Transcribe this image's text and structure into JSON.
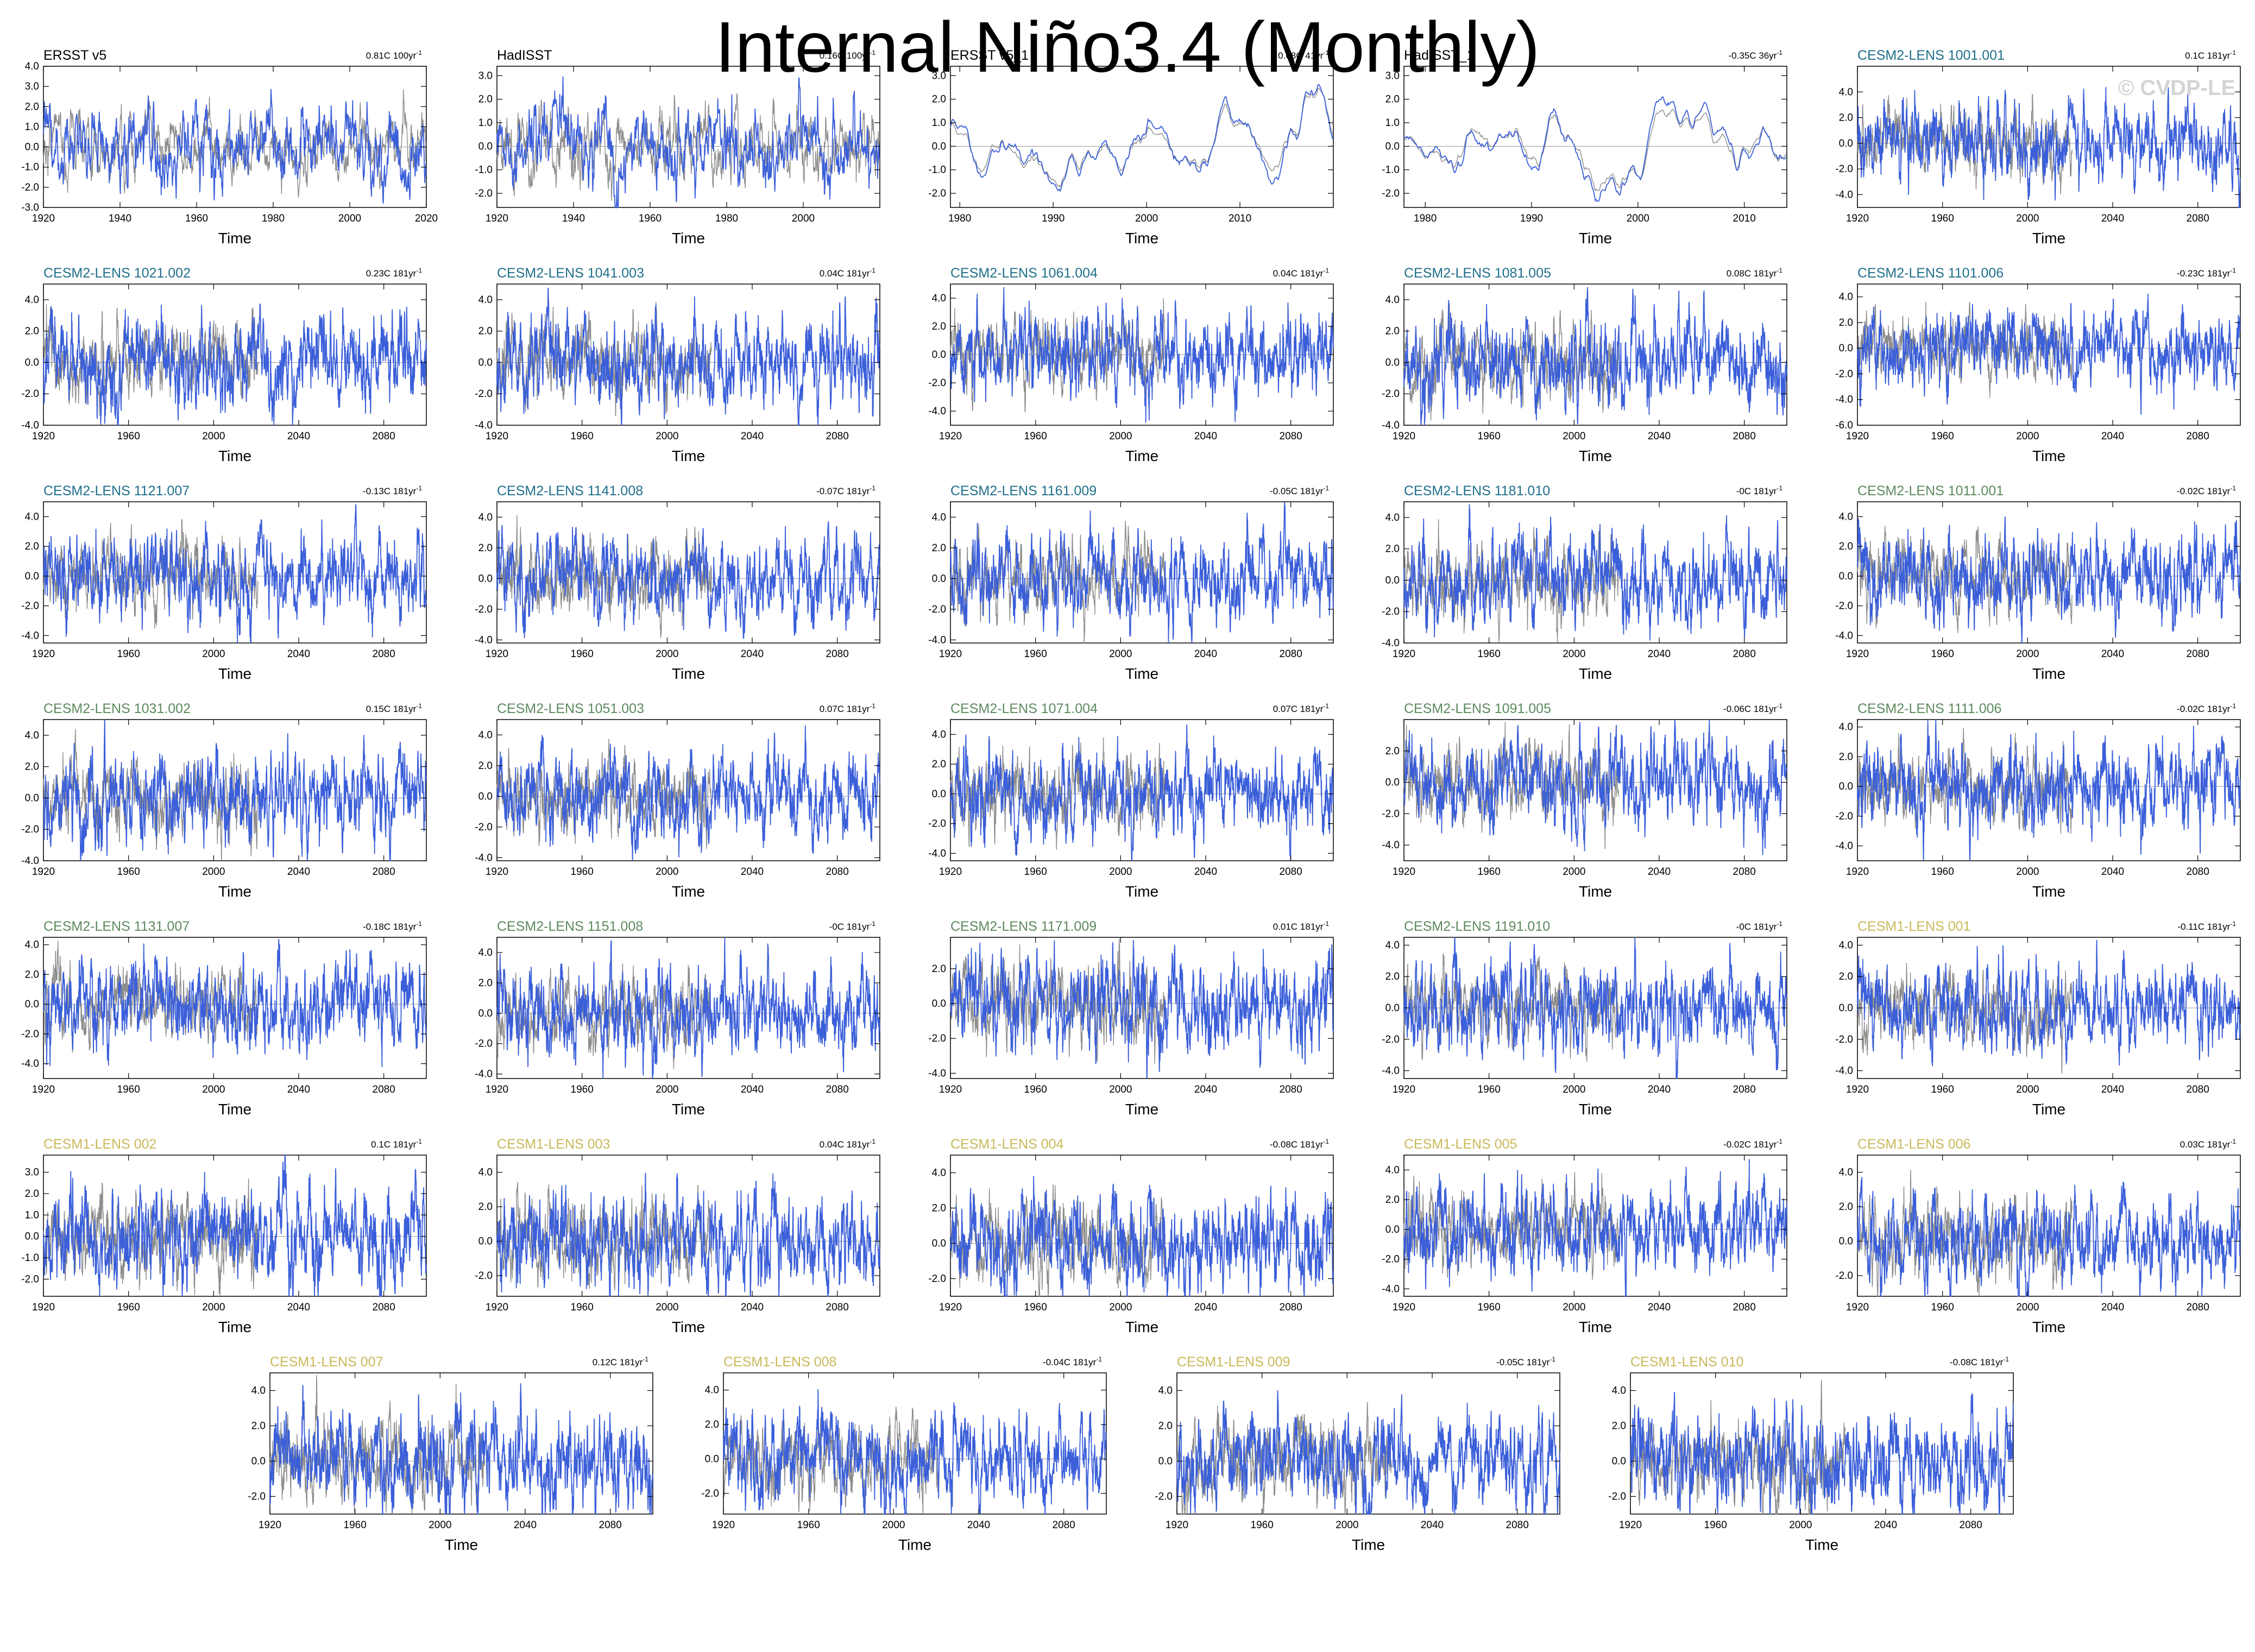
{
  "title": "Internal Niño3.4 (Monthly)",
  "watermark": "© CVDP-LE",
  "colors": {
    "observations_title": "#000000",
    "cesm2_cmip6_title": "#1f6f8b",
    "cesm2_smbb_title": "#5d8a5e",
    "cesm1_title": "#c9b95a",
    "primary_series": "#3b5fd9",
    "secondary_series": "#8c8c8c"
  },
  "chart_data": [
    {
      "type": "line",
      "title": "ERSST v5",
      "stat": "0.81C 100yr",
      "title_color": "#000000",
      "xlabel": "Time",
      "xlim": [
        1920,
        2020
      ],
      "xticks": [
        1920,
        1940,
        1960,
        1980,
        2000,
        2020
      ],
      "ylim": [
        -3.0,
        4.0
      ],
      "yticks": [
        -3.0,
        -2.0,
        -1.0,
        0.0,
        1.0,
        2.0,
        3.0,
        4.0
      ],
      "amplitude": 1.0,
      "smooth": false,
      "seed": 1
    },
    {
      "type": "line",
      "title": "HadISST",
      "stat": "0.16C 100yr",
      "title_color": "#000000",
      "xlabel": "Time",
      "xlim": [
        1920,
        2020
      ],
      "xticks": [
        1920,
        1940,
        1960,
        1980,
        2000
      ],
      "ylim": [
        -2.6,
        3.4
      ],
      "yticks": [
        -2.0,
        -1.0,
        0.0,
        1.0,
        2.0,
        3.0
      ],
      "amplitude": 0.9,
      "smooth": false,
      "seed": 2
    },
    {
      "type": "line",
      "title": "ERSST v5_1",
      "stat": "0.08C 41yr",
      "title_color": "#000000",
      "xlabel": "Time",
      "xlim": [
        1979,
        2020
      ],
      "xticks": [
        1980,
        1990,
        2000,
        2010
      ],
      "ylim": [
        -2.6,
        3.4
      ],
      "yticks": [
        -2.0,
        -1.0,
        0.0,
        1.0,
        2.0,
        3.0
      ],
      "amplitude": 1.0,
      "smooth": true,
      "seed": 3
    },
    {
      "type": "line",
      "title": "HadISST_1",
      "stat": "-0.35C 36yr",
      "title_color": "#000000",
      "xlabel": "Time",
      "xlim": [
        1978,
        2014
      ],
      "xticks": [
        1980,
        1990,
        2000,
        2010
      ],
      "ylim": [
        -2.6,
        3.4
      ],
      "yticks": [
        -2.0,
        -1.0,
        0.0,
        1.0,
        2.0,
        3.0
      ],
      "amplitude": 1.0,
      "smooth": true,
      "seed": 4
    },
    {
      "type": "line",
      "title": "CESM2-LENS 1001.001",
      "stat": "0.1C 181yr",
      "title_color": "#1f6f8b",
      "xlabel": "Time",
      "xlim": [
        1920,
        2100
      ],
      "xticks": [
        1920,
        1960,
        2000,
        2040,
        2080
      ],
      "ylim": [
        -5.0,
        6.0
      ],
      "yticks": [
        -4.0,
        -2.0,
        0.0,
        2.0,
        4.0
      ],
      "amplitude": 1.5,
      "smooth": false,
      "seed": 5
    },
    {
      "type": "line",
      "title": "CESM2-LENS 1021.002",
      "stat": "0.23C 181yr",
      "title_color": "#1f6f8b",
      "xlabel": "Time",
      "xlim": [
        1920,
        2100
      ],
      "xticks": [
        1920,
        1960,
        2000,
        2040,
        2080
      ],
      "ylim": [
        -4.0,
        5.0
      ],
      "yticks": [
        -4.0,
        -2.0,
        0.0,
        2.0,
        4.0
      ],
      "amplitude": 1.4,
      "smooth": false,
      "seed": 6
    },
    {
      "type": "line",
      "title": "CESM2-LENS 1041.003",
      "stat": "0.04C 181yr",
      "title_color": "#1f6f8b",
      "xlabel": "Time",
      "xlim": [
        1920,
        2100
      ],
      "xticks": [
        1920,
        1960,
        2000,
        2040,
        2080
      ],
      "ylim": [
        -4.0,
        5.0
      ],
      "yticks": [
        -4.0,
        -2.0,
        0.0,
        2.0,
        4.0
      ],
      "amplitude": 1.4,
      "smooth": false,
      "seed": 7
    },
    {
      "type": "line",
      "title": "CESM2-LENS 1061.004",
      "stat": "0.04C 181yr",
      "title_color": "#1f6f8b",
      "xlabel": "Time",
      "xlim": [
        1920,
        2100
      ],
      "xticks": [
        1920,
        1960,
        2000,
        2040,
        2080
      ],
      "ylim": [
        -5.0,
        5.0
      ],
      "yticks": [
        -4.0,
        -2.0,
        0.0,
        2.0,
        4.0
      ],
      "amplitude": 1.4,
      "smooth": false,
      "seed": 8
    },
    {
      "type": "line",
      "title": "CESM2-LENS 1081.005",
      "stat": "0.08C 181yr",
      "title_color": "#1f6f8b",
      "xlabel": "Time",
      "xlim": [
        1920,
        2100
      ],
      "xticks": [
        1920,
        1960,
        2000,
        2040,
        2080
      ],
      "ylim": [
        -4.0,
        5.0
      ],
      "yticks": [
        -4.0,
        -2.0,
        0.0,
        2.0,
        4.0
      ],
      "amplitude": 1.4,
      "smooth": false,
      "seed": 9
    },
    {
      "type": "line",
      "title": "CESM2-LENS 1101.006",
      "stat": "-0.23C 181yr",
      "title_color": "#1f6f8b",
      "xlabel": "Time",
      "xlim": [
        1920,
        2100
      ],
      "xticks": [
        1920,
        1960,
        2000,
        2040,
        2080
      ],
      "ylim": [
        -6.0,
        5.0
      ],
      "yticks": [
        -6.0,
        -4.0,
        -2.0,
        0.0,
        2.0,
        4.0
      ],
      "amplitude": 1.4,
      "smooth": false,
      "seed": 10
    },
    {
      "type": "line",
      "title": "CESM2-LENS 1121.007",
      "stat": "-0.13C 181yr",
      "title_color": "#1f6f8b",
      "xlabel": "Time",
      "xlim": [
        1920,
        2100
      ],
      "xticks": [
        1920,
        1960,
        2000,
        2040,
        2080
      ],
      "ylim": [
        -4.5,
        5.0
      ],
      "yticks": [
        -4.0,
        -2.0,
        0.0,
        2.0,
        4.0
      ],
      "amplitude": 1.4,
      "smooth": false,
      "seed": 11
    },
    {
      "type": "line",
      "title": "CESM2-LENS 1141.008",
      "stat": "-0.07C 181yr",
      "title_color": "#1f6f8b",
      "xlabel": "Time",
      "xlim": [
        1920,
        2100
      ],
      "xticks": [
        1920,
        1960,
        2000,
        2040,
        2080
      ],
      "ylim": [
        -4.2,
        5.0
      ],
      "yticks": [
        -4.0,
        -2.0,
        0.0,
        2.0,
        4.0
      ],
      "amplitude": 1.4,
      "smooth": false,
      "seed": 12
    },
    {
      "type": "line",
      "title": "CESM2-LENS 1161.009",
      "stat": "-0.05C 181yr",
      "title_color": "#1f6f8b",
      "xlabel": "Time",
      "xlim": [
        1920,
        2100
      ],
      "xticks": [
        1920,
        1960,
        2000,
        2040,
        2080
      ],
      "ylim": [
        -4.2,
        5.0
      ],
      "yticks": [
        -4.0,
        -2.0,
        0.0,
        2.0,
        4.0
      ],
      "amplitude": 1.4,
      "smooth": false,
      "seed": 13
    },
    {
      "type": "line",
      "title": "CESM2-LENS 1181.010",
      "stat": "-0C 181yr",
      "title_color": "#1f6f8b",
      "xlabel": "Time",
      "xlim": [
        1920,
        2100
      ],
      "xticks": [
        1920,
        1960,
        2000,
        2040,
        2080
      ],
      "ylim": [
        -4.0,
        5.0
      ],
      "yticks": [
        -4.0,
        -2.0,
        0.0,
        2.0,
        4.0
      ],
      "amplitude": 1.4,
      "smooth": false,
      "seed": 14
    },
    {
      "type": "line",
      "title": "CESM2-LENS 1011.001",
      "stat": "-0.02C 181yr",
      "title_color": "#5d8a5e",
      "xlabel": "Time",
      "xlim": [
        1920,
        2100
      ],
      "xticks": [
        1920,
        1960,
        2000,
        2040,
        2080
      ],
      "ylim": [
        -4.5,
        5.0
      ],
      "yticks": [
        -4.0,
        -2.0,
        0.0,
        2.0,
        4.0
      ],
      "amplitude": 1.4,
      "smooth": false,
      "seed": 15
    },
    {
      "type": "line",
      "title": "CESM2-LENS 1031.002",
      "stat": "0.15C 181yr",
      "title_color": "#5d8a5e",
      "xlabel": "Time",
      "xlim": [
        1920,
        2100
      ],
      "xticks": [
        1920,
        1960,
        2000,
        2040,
        2080
      ],
      "ylim": [
        -4.0,
        5.0
      ],
      "yticks": [
        -4.0,
        -2.0,
        0.0,
        2.0,
        4.0
      ],
      "amplitude": 1.4,
      "smooth": false,
      "seed": 16
    },
    {
      "type": "line",
      "title": "CESM2-LENS 1051.003",
      "stat": "0.07C 181yr",
      "title_color": "#5d8a5e",
      "xlabel": "Time",
      "xlim": [
        1920,
        2100
      ],
      "xticks": [
        1920,
        1960,
        2000,
        2040,
        2080
      ],
      "ylim": [
        -4.2,
        5.0
      ],
      "yticks": [
        -4.0,
        -2.0,
        0.0,
        2.0,
        4.0
      ],
      "amplitude": 1.4,
      "smooth": false,
      "seed": 17
    },
    {
      "type": "line",
      "title": "CESM2-LENS 1071.004",
      "stat": "0.07C 181yr",
      "title_color": "#5d8a5e",
      "xlabel": "Time",
      "xlim": [
        1920,
        2100
      ],
      "xticks": [
        1920,
        1960,
        2000,
        2040,
        2080
      ],
      "ylim": [
        -4.5,
        5.0
      ],
      "yticks": [
        -4.0,
        -2.0,
        0.0,
        2.0,
        4.0
      ],
      "amplitude": 1.4,
      "smooth": false,
      "seed": 18
    },
    {
      "type": "line",
      "title": "CESM2-LENS 1091.005",
      "stat": "-0.06C 181yr",
      "title_color": "#5d8a5e",
      "xlabel": "Time",
      "xlim": [
        1920,
        2100
      ],
      "xticks": [
        1920,
        1960,
        2000,
        2040,
        2080
      ],
      "ylim": [
        -5.0,
        4.0
      ],
      "yticks": [
        -4.0,
        -2.0,
        0.0,
        2.0
      ],
      "amplitude": 1.4,
      "smooth": false,
      "seed": 19
    },
    {
      "type": "line",
      "title": "CESM2-LENS 1111.006",
      "stat": "-0.02C 181yr",
      "title_color": "#5d8a5e",
      "xlabel": "Time",
      "xlim": [
        1920,
        2100
      ],
      "xticks": [
        1920,
        1960,
        2000,
        2040,
        2080
      ],
      "ylim": [
        -5.0,
        4.5
      ],
      "yticks": [
        -4.0,
        -2.0,
        0.0,
        2.0,
        4.0
      ],
      "amplitude": 1.4,
      "smooth": false,
      "seed": 20
    },
    {
      "type": "line",
      "title": "CESM2-LENS 1131.007",
      "stat": "-0.18C 181yr",
      "title_color": "#5d8a5e",
      "xlabel": "Time",
      "xlim": [
        1920,
        2100
      ],
      "xticks": [
        1920,
        1960,
        2000,
        2040,
        2080
      ],
      "ylim": [
        -5.0,
        4.5
      ],
      "yticks": [
        -4.0,
        -2.0,
        0.0,
        2.0,
        4.0
      ],
      "amplitude": 1.4,
      "smooth": false,
      "seed": 21
    },
    {
      "type": "line",
      "title": "CESM2-LENS 1151.008",
      "stat": "-0C 181yr",
      "title_color": "#5d8a5e",
      "xlabel": "Time",
      "xlim": [
        1920,
        2100
      ],
      "xticks": [
        1920,
        1960,
        2000,
        2040,
        2080
      ],
      "ylim": [
        -4.3,
        5.0
      ],
      "yticks": [
        -4.0,
        -2.0,
        0.0,
        2.0,
        4.0
      ],
      "amplitude": 1.4,
      "smooth": false,
      "seed": 22
    },
    {
      "type": "line",
      "title": "CESM2-LENS 1171.009",
      "stat": "0.01C 181yr",
      "title_color": "#5d8a5e",
      "xlabel": "Time",
      "xlim": [
        1920,
        2100
      ],
      "xticks": [
        1920,
        1960,
        2000,
        2040,
        2080
      ],
      "ylim": [
        -4.3,
        3.8
      ],
      "yticks": [
        -4.0,
        -2.0,
        0.0,
        2.0
      ],
      "amplitude": 1.3,
      "smooth": false,
      "seed": 23
    },
    {
      "type": "line",
      "title": "CESM2-LENS 1191.010",
      "stat": "-0C 181yr",
      "title_color": "#5d8a5e",
      "xlabel": "Time",
      "xlim": [
        1920,
        2100
      ],
      "xticks": [
        1920,
        1960,
        2000,
        2040,
        2080
      ],
      "ylim": [
        -4.5,
        4.5
      ],
      "yticks": [
        -4.0,
        -2.0,
        0.0,
        2.0,
        4.0
      ],
      "amplitude": 1.4,
      "smooth": false,
      "seed": 24
    },
    {
      "type": "line",
      "title": "CESM1-LENS 001",
      "stat": "-0.11C 181yr",
      "title_color": "#c9b95a",
      "xlabel": "Time",
      "xlim": [
        1920,
        2100
      ],
      "xticks": [
        1920,
        1960,
        2000,
        2040,
        2080
      ],
      "ylim": [
        -4.5,
        4.5
      ],
      "yticks": [
        -4.0,
        -2.0,
        0.0,
        2.0,
        4.0
      ],
      "amplitude": 1.3,
      "smooth": false,
      "seed": 25
    },
    {
      "type": "line",
      "title": "CESM1-LENS 002",
      "stat": "0.1C 181yr",
      "title_color": "#c9b95a",
      "xlabel": "Time",
      "xlim": [
        1920,
        2100
      ],
      "xticks": [
        1920,
        1960,
        2000,
        2040,
        2080
      ],
      "ylim": [
        -2.8,
        3.8
      ],
      "yticks": [
        -2.0,
        -1.0,
        0.0,
        1.0,
        2.0,
        3.0
      ],
      "amplitude": 1.1,
      "smooth": false,
      "seed": 26
    },
    {
      "type": "line",
      "title": "CESM1-LENS 003",
      "stat": "0.04C 181yr",
      "title_color": "#c9b95a",
      "xlabel": "Time",
      "xlim": [
        1920,
        2100
      ],
      "xticks": [
        1920,
        1960,
        2000,
        2040,
        2080
      ],
      "ylim": [
        -3.2,
        5.0
      ],
      "yticks": [
        -2.0,
        0.0,
        2.0,
        4.0
      ],
      "amplitude": 1.3,
      "smooth": false,
      "seed": 27
    },
    {
      "type": "line",
      "title": "CESM1-LENS 004",
      "stat": "-0.08C 181yr",
      "title_color": "#c9b95a",
      "xlabel": "Time",
      "xlim": [
        1920,
        2100
      ],
      "xticks": [
        1920,
        1960,
        2000,
        2040,
        2080
      ],
      "ylim": [
        -3.0,
        5.0
      ],
      "yticks": [
        -2.0,
        0.0,
        2.0,
        4.0
      ],
      "amplitude": 1.3,
      "smooth": false,
      "seed": 28
    },
    {
      "type": "line",
      "title": "CESM1-LENS 005",
      "stat": "-0.02C 181yr",
      "title_color": "#c9b95a",
      "xlabel": "Time",
      "xlim": [
        1920,
        2100
      ],
      "xticks": [
        1920,
        1960,
        2000,
        2040,
        2080
      ],
      "ylim": [
        -4.5,
        5.0
      ],
      "yticks": [
        -4.0,
        -2.0,
        0.0,
        2.0,
        4.0
      ],
      "amplitude": 1.4,
      "smooth": false,
      "seed": 29
    },
    {
      "type": "line",
      "title": "CESM1-LENS 006",
      "stat": "0.03C 181yr",
      "title_color": "#c9b95a",
      "xlabel": "Time",
      "xlim": [
        1920,
        2100
      ],
      "xticks": [
        1920,
        1960,
        2000,
        2040,
        2080
      ],
      "ylim": [
        -3.2,
        5.0
      ],
      "yticks": [
        -2.0,
        0.0,
        2.0,
        4.0
      ],
      "amplitude": 1.3,
      "smooth": false,
      "seed": 30
    },
    {
      "type": "line",
      "title": "CESM1-LENS 007",
      "stat": "0.12C 181yr",
      "title_color": "#c9b95a",
      "xlabel": "Time",
      "xlim": [
        1920,
        2100
      ],
      "xticks": [
        1920,
        1960,
        2000,
        2040,
        2080
      ],
      "ylim": [
        -3.0,
        5.0
      ],
      "yticks": [
        -2.0,
        0.0,
        2.0,
        4.0
      ],
      "amplitude": 1.3,
      "smooth": false,
      "seed": 31
    },
    {
      "type": "line",
      "title": "CESM1-LENS 008",
      "stat": "-0.04C 181yr",
      "title_color": "#c9b95a",
      "xlabel": "Time",
      "xlim": [
        1920,
        2100
      ],
      "xticks": [
        1920,
        1960,
        2000,
        2040,
        2080
      ],
      "ylim": [
        -3.2,
        5.0
      ],
      "yticks": [
        -2.0,
        0.0,
        2.0,
        4.0
      ],
      "amplitude": 1.3,
      "smooth": false,
      "seed": 32
    },
    {
      "type": "line",
      "title": "CESM1-LENS 009",
      "stat": "-0.05C 181yr",
      "title_color": "#c9b95a",
      "xlabel": "Time",
      "xlim": [
        1920,
        2100
      ],
      "xticks": [
        1920,
        1960,
        2000,
        2040,
        2080
      ],
      "ylim": [
        -3.0,
        5.0
      ],
      "yticks": [
        -2.0,
        0.0,
        2.0,
        4.0
      ],
      "amplitude": 1.3,
      "smooth": false,
      "seed": 33
    },
    {
      "type": "line",
      "title": "CESM1-LENS 010",
      "stat": "-0.08C 181yr",
      "title_color": "#c9b95a",
      "xlabel": "Time",
      "xlim": [
        1920,
        2100
      ],
      "xticks": [
        1920,
        1960,
        2000,
        2040,
        2080
      ],
      "ylim": [
        -3.0,
        5.0
      ],
      "yticks": [
        -2.0,
        0.0,
        2.0,
        4.0
      ],
      "amplitude": 1.3,
      "smooth": false,
      "seed": 34
    }
  ]
}
